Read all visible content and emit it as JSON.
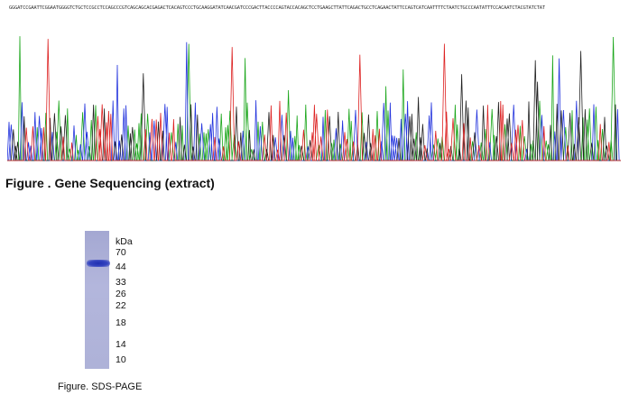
{
  "sequencing": {
    "sequence_text": "GGGATCCGAATTCGGAATGGGGTCTGCTCCGCCTCCAGCCCGTCAGCAGCACGAGACTCACAGTCCCTGCAAGGATATCAACGATCCCGACTTACCCCAGTACCACAGCTCCTGAAGCTTATTCAGACTGCCTCAGAACTATTCCAGTCATCAATTTTCTAATCTGCCCAATATTTCCACAATCTACGTATCTAT",
    "caption": "Figure . Gene Sequencing (extract)",
    "colors": {
      "A": "#1aa61a",
      "C": "#2233dd",
      "G": "#222222",
      "T": "#dd2222"
    }
  },
  "sds_page": {
    "unit_label": "kDa",
    "markers": [
      "70",
      "44",
      "33",
      "26",
      "22",
      "18",
      "14",
      "10"
    ],
    "caption": "Figure. SDS-PAGE",
    "gel_color": "#adb1d8",
    "band_color": "#2433b5"
  }
}
